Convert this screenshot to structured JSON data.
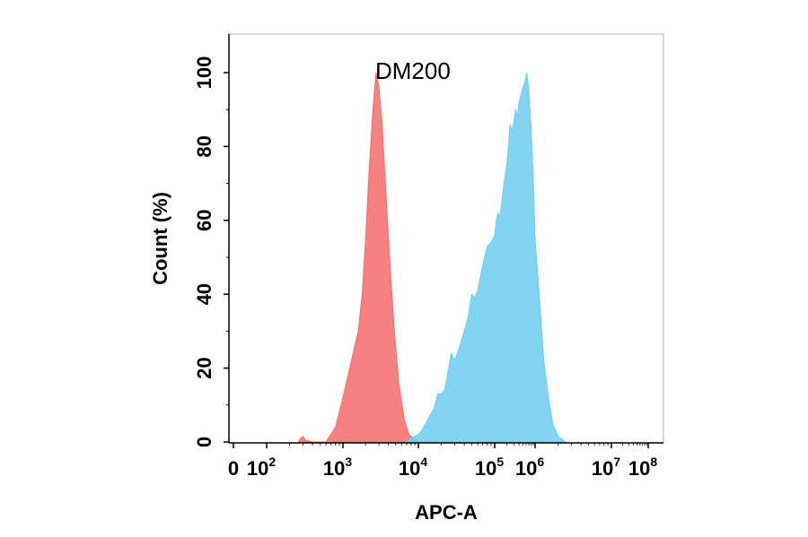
{
  "chart_data": {
    "type": "area",
    "title": "DM200",
    "xlabel": "APC-A",
    "ylabel": "Count  (%)",
    "y_ticks": [
      "0",
      "20",
      "40",
      "60",
      "80",
      "100"
    ],
    "ylim": [
      0,
      110
    ],
    "x_ticks": [
      {
        "base": "0",
        "exp": ""
      },
      {
        "base": "10",
        "exp": "2"
      },
      {
        "base": "10",
        "exp": "3"
      },
      {
        "base": "10",
        "exp": "4"
      },
      {
        "base": "10",
        "exp": "5"
      },
      {
        "base": "10",
        "exp": "6"
      },
      {
        "base": "10",
        "exp": "7"
      },
      {
        "base": "10",
        "exp": "8"
      }
    ],
    "x_scale": "biexponential",
    "series": [
      {
        "color": "#f46b6b",
        "points": [
          [
            260,
            0
          ],
          [
            280,
            1
          ],
          [
            300,
            1.5
          ],
          [
            320,
            0.5
          ],
          [
            400,
            0
          ],
          [
            600,
            0
          ],
          [
            800,
            4
          ],
          [
            1000,
            12
          ],
          [
            1200,
            19
          ],
          [
            1400,
            25
          ],
          [
            1600,
            30
          ],
          [
            1800,
            40
          ],
          [
            2000,
            55
          ],
          [
            2200,
            72
          ],
          [
            2500,
            90
          ],
          [
            2750,
            100
          ],
          [
            3000,
            96
          ],
          [
            3300,
            86
          ],
          [
            3700,
            68
          ],
          [
            4200,
            48
          ],
          [
            4800,
            30
          ],
          [
            5500,
            16
          ],
          [
            6500,
            6
          ],
          [
            7500,
            2
          ],
          [
            9000,
            0.5
          ],
          [
            11000,
            0
          ]
        ]
      },
      {
        "color": "#6ccdf0",
        "points": [
          [
            7000,
            0
          ],
          [
            8000,
            1
          ],
          [
            10000,
            2
          ],
          [
            11000,
            3
          ],
          [
            12500,
            5
          ],
          [
            14000,
            7
          ],
          [
            16000,
            9
          ],
          [
            18000,
            13
          ],
          [
            20000,
            13
          ],
          [
            22000,
            14
          ],
          [
            24000,
            18
          ],
          [
            27000,
            24
          ],
          [
            30000,
            22
          ],
          [
            35000,
            26
          ],
          [
            40000,
            30
          ],
          [
            45000,
            34
          ],
          [
            50000,
            40
          ],
          [
            55000,
            39
          ],
          [
            60000,
            41
          ],
          [
            70000,
            48
          ],
          [
            80000,
            53
          ],
          [
            90000,
            54
          ],
          [
            100000,
            56
          ],
          [
            110000,
            60
          ],
          [
            120000,
            62
          ],
          [
            135000,
            61
          ],
          [
            150000,
            65
          ],
          [
            170000,
            70
          ],
          [
            200000,
            75
          ],
          [
            220000,
            80
          ],
          [
            240000,
            86
          ],
          [
            270000,
            84
          ],
          [
            300000,
            87
          ],
          [
            330000,
            90
          ],
          [
            370000,
            88
          ],
          [
            400000,
            92
          ],
          [
            450000,
            94
          ],
          [
            500000,
            96
          ],
          [
            550000,
            97
          ],
          [
            620000,
            100
          ],
          [
            700000,
            95
          ],
          [
            800000,
            85
          ],
          [
            900000,
            72
          ],
          [
            1000000,
            55
          ],
          [
            1150000,
            38
          ],
          [
            1300000,
            22
          ],
          [
            1500000,
            12
          ],
          [
            1700000,
            5
          ],
          [
            2000000,
            1.5
          ],
          [
            2500000,
            0
          ]
        ]
      }
    ]
  }
}
